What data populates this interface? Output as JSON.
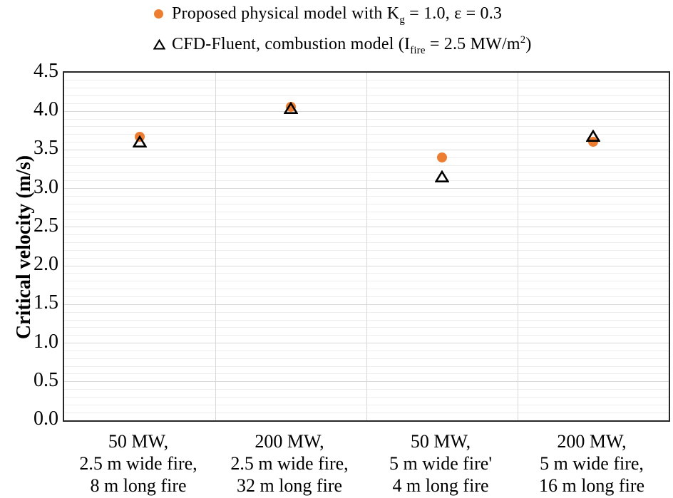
{
  "figure": {
    "legend": [
      {
        "marker": "filled-circle",
        "color": "#ED7D31",
        "pre": "Proposed physical model with K",
        "sub": "g",
        "mid": " = 1.0, ε = 0.3",
        "sup": "",
        "post": ""
      },
      {
        "marker": "open-triangle",
        "color": "#000000",
        "pre": "CFD-Fluent, combustion model (I",
        "sub": "fire",
        "mid": " = 2.5 MW/m",
        "sup": "2",
        "post": ")"
      }
    ]
  },
  "chart_data": {
    "type": "scatter",
    "title": "",
    "xlabel": "",
    "ylabel": "Critical velocity (m/s)",
    "ylim": [
      0,
      4.5
    ],
    "ytick_step": 0.5,
    "minor_grid_step": 0.1,
    "yticks": [
      "0.0",
      "0.5",
      "1.0",
      "1.5",
      "2.0",
      "2.5",
      "3.0",
      "3.5",
      "4.0",
      "4.5"
    ],
    "grid": {
      "horizontal": true,
      "vertical_category_separators": true,
      "major_color": "#d9d9d9",
      "minor_color": "#ededed"
    },
    "legend_position": "top",
    "categories": [
      [
        "50 MW,",
        "2.5 m wide fire,",
        "8 m long fire"
      ],
      [
        "200 MW,",
        "2.5 m wide fire,",
        "32 m long fire"
      ],
      [
        "50 MW,",
        "5 m wide fire'",
        "4 m long fire"
      ],
      [
        "200 MW,",
        "5 m wide fire,",
        "16 m long fire"
      ]
    ],
    "series": [
      {
        "name": "Proposed physical model with Kg = 1.0, ε = 0.3",
        "marker": "filled-circle",
        "color": "#ED7D31",
        "values": [
          3.67,
          4.06,
          3.4,
          3.61
        ]
      },
      {
        "name": "CFD-Fluent, combustion model (Ifire = 2.5 MW/m2)",
        "marker": "open-triangle",
        "color": "#000000",
        "values": [
          3.61,
          4.04,
          3.15,
          3.68
        ]
      }
    ]
  }
}
